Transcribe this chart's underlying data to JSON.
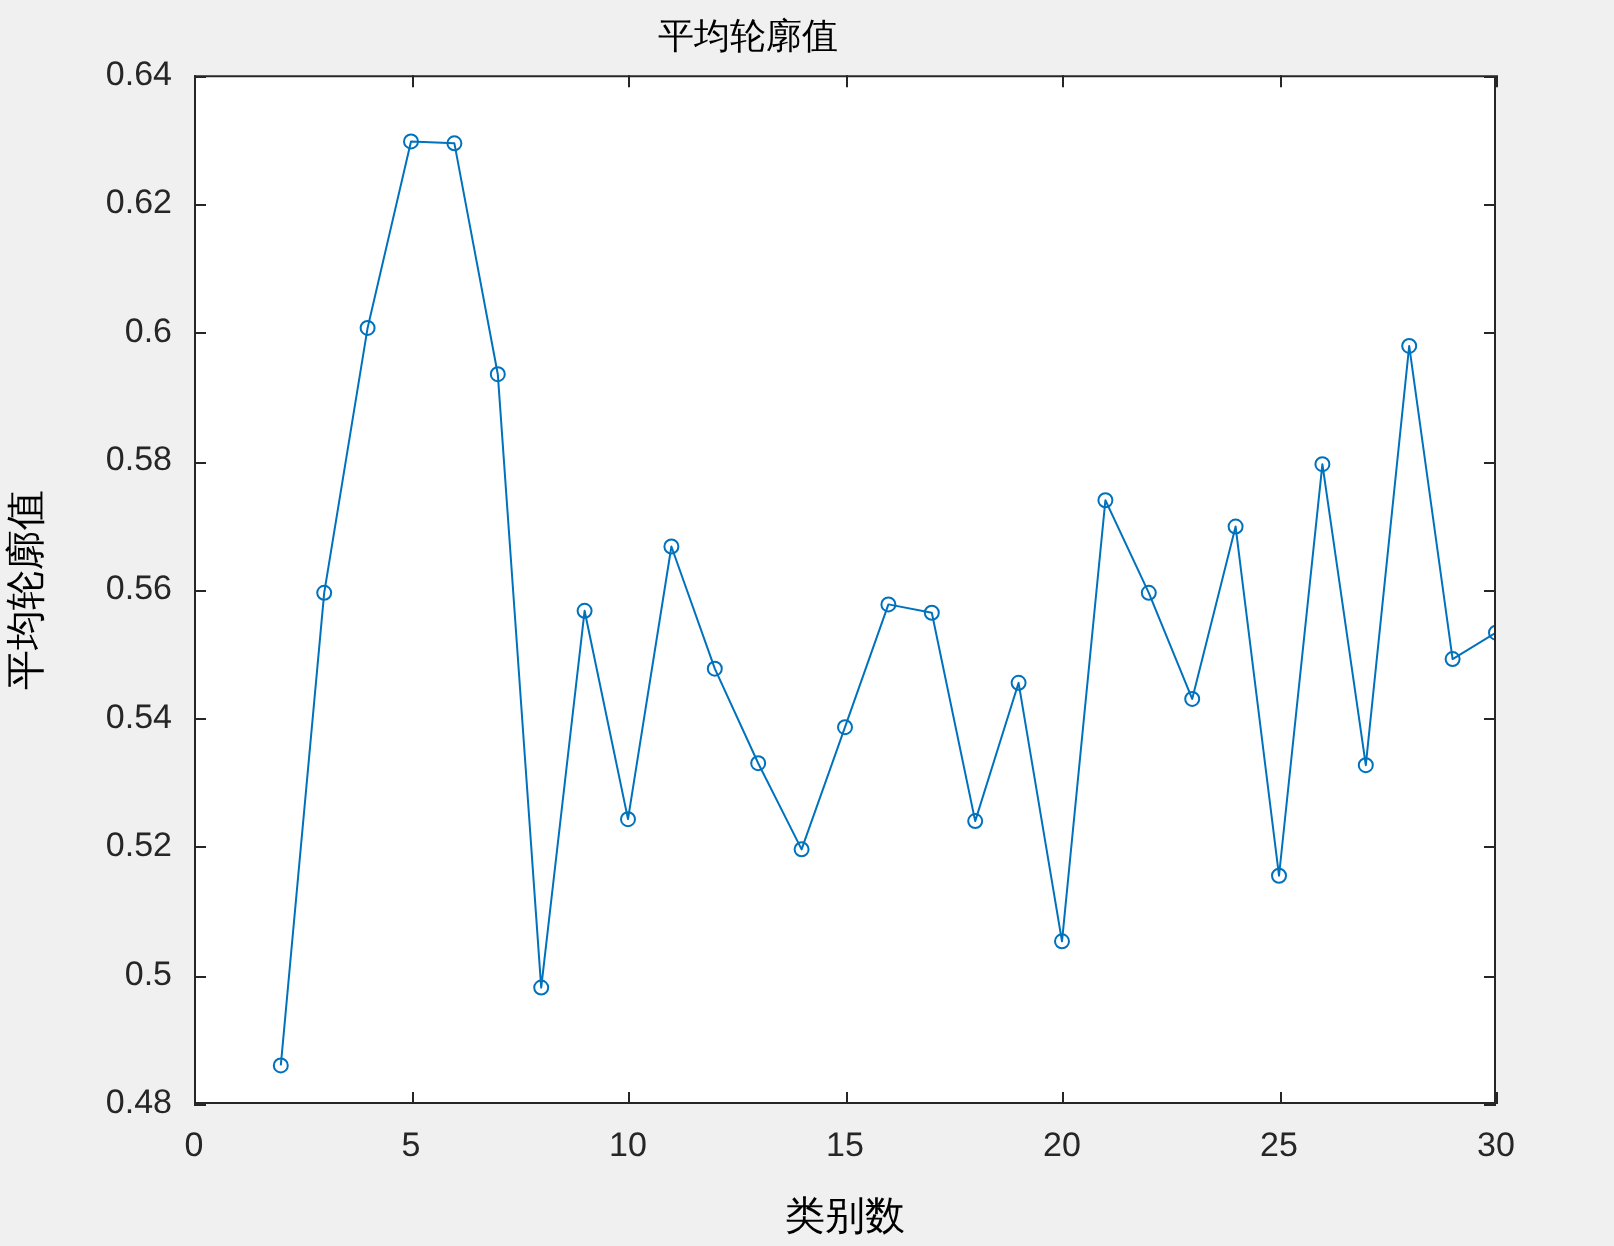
{
  "chart_data": {
    "type": "line",
    "title": "平均轮廓值",
    "xlabel": "类别数",
    "ylabel": "平均轮廓值",
    "x": [
      2,
      3,
      4,
      5,
      6,
      7,
      8,
      9,
      10,
      11,
      12,
      13,
      14,
      15,
      16,
      17,
      18,
      19,
      20,
      21,
      22,
      23,
      24,
      25,
      26,
      27,
      28,
      29,
      30
    ],
    "values": [
      0.486,
      0.5595,
      0.6007,
      0.6297,
      0.6294,
      0.5935,
      0.4981,
      0.5567,
      0.5243,
      0.5667,
      0.5477,
      0.533,
      0.5196,
      0.5386,
      0.5577,
      0.5564,
      0.524,
      0.5455,
      0.5053,
      0.5739,
      0.5595,
      0.543,
      0.5698,
      0.5155,
      0.5795,
      0.5327,
      0.5979,
      0.5492,
      0.5533
    ],
    "color": "#0072bd",
    "marker": "circle",
    "line_style": "solid",
    "xlim": [
      0,
      30
    ],
    "xticks": [
      0,
      5,
      10,
      15,
      20,
      25,
      30
    ],
    "ylim": [
      0.48,
      0.64
    ],
    "yticks": [
      0.48,
      0.5,
      0.52,
      0.54,
      0.56,
      0.58,
      0.6,
      0.62,
      0.64
    ]
  }
}
